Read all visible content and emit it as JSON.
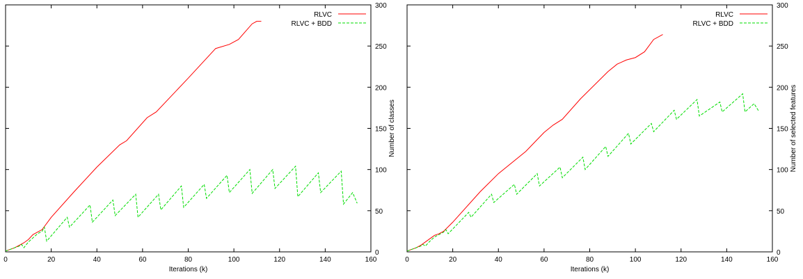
{
  "colors": {
    "rlvc": "#ff0000",
    "rlvc_bdd": "#00dd00",
    "axis": "#000000"
  },
  "chart_data": [
    {
      "type": "line",
      "title": "",
      "xlabel": "Iterations (k)",
      "ylabel": "Number of classes",
      "xlim": [
        0,
        160
      ],
      "ylim": [
        0,
        300
      ],
      "x_ticks": [
        "0",
        "20",
        "40",
        "60",
        "80",
        "100",
        "120",
        "140",
        "160"
      ],
      "y_ticks": [
        "0",
        "50",
        "100",
        "150",
        "200",
        "250",
        "300"
      ],
      "y_axis_side": "right",
      "grid": false,
      "legend_position": "top-right",
      "series": [
        {
          "name": "RLVC",
          "style": "solid",
          "color": "#ff0000",
          "points": [
            [
              0,
              1
            ],
            [
              2,
              3
            ],
            [
              4,
              5
            ],
            [
              6,
              8
            ],
            [
              8,
              11
            ],
            [
              10,
              15
            ],
            [
              12,
              21
            ],
            [
              14,
              24
            ],
            [
              16,
              27
            ],
            [
              20,
              42
            ],
            [
              30,
              73
            ],
            [
              40,
              103
            ],
            [
              50,
              130
            ],
            [
              53,
              135
            ],
            [
              62,
              163
            ],
            [
              66,
              170
            ],
            [
              80,
              211
            ],
            [
              92,
              247
            ],
            [
              98,
              252
            ],
            [
              102,
              258
            ],
            [
              108,
              277
            ],
            [
              110,
              280
            ],
            [
              112,
              280
            ]
          ]
        },
        {
          "name": "RLVC + BDD",
          "style": "dashed",
          "color": "#00dd00",
          "points": [
            [
              0,
              1
            ],
            [
              2,
              3
            ],
            [
              4,
              5
            ],
            [
              6,
              7
            ],
            [
              7,
              9
            ],
            [
              8,
              5
            ],
            [
              10,
              12
            ],
            [
              12,
              17
            ],
            [
              14,
              22
            ],
            [
              16,
              25
            ],
            [
              17,
              30
            ],
            [
              18,
              13
            ],
            [
              27,
              42
            ],
            [
              28,
              30
            ],
            [
              37,
              57
            ],
            [
              38,
              36
            ],
            [
              47,
              63
            ],
            [
              48,
              44
            ],
            [
              57,
              70
            ],
            [
              58,
              42
            ],
            [
              67,
              70
            ],
            [
              68,
              51
            ],
            [
              77,
              80
            ],
            [
              78,
              54
            ],
            [
              87,
              82
            ],
            [
              88,
              65
            ],
            [
              97,
              93
            ],
            [
              98,
              72
            ],
            [
              107,
              100
            ],
            [
              108,
              71
            ],
            [
              117,
              100
            ],
            [
              118,
              77
            ],
            [
              127,
              104
            ],
            [
              128,
              67
            ],
            [
              137,
              96
            ],
            [
              138,
              72
            ],
            [
              147,
              98
            ],
            [
              148,
              58
            ],
            [
              152,
              72
            ],
            [
              154,
              59
            ]
          ]
        }
      ]
    },
    {
      "type": "line",
      "title": "",
      "xlabel": "Iterations (k)",
      "ylabel": "Number of selected features",
      "xlim": [
        0,
        160
      ],
      "ylim": [
        0,
        300
      ],
      "x_ticks": [
        "0",
        "20",
        "40",
        "60",
        "80",
        "100",
        "120",
        "140",
        "160"
      ],
      "y_ticks": [
        "0",
        "50",
        "100",
        "150",
        "200",
        "250",
        "300"
      ],
      "y_axis_side": "right",
      "grid": false,
      "legend_position": "top-right",
      "series": [
        {
          "name": "RLVC",
          "style": "solid",
          "color": "#ff0000",
          "points": [
            [
              0,
              1
            ],
            [
              2,
              3
            ],
            [
              4,
              5
            ],
            [
              6,
              8
            ],
            [
              8,
              12
            ],
            [
              10,
              16
            ],
            [
              12,
              20
            ],
            [
              14,
              22
            ],
            [
              16,
              25
            ],
            [
              20,
              36
            ],
            [
              32,
              73
            ],
            [
              40,
              95
            ],
            [
              52,
              122
            ],
            [
              60,
              145
            ],
            [
              64,
              154
            ],
            [
              68,
              161
            ],
            [
              76,
              186
            ],
            [
              88,
              219
            ],
            [
              92,
              228
            ],
            [
              96,
              233
            ],
            [
              100,
              236
            ],
            [
              104,
              243
            ],
            [
              108,
              258
            ],
            [
              112,
              264
            ]
          ]
        },
        {
          "name": "RLVC + BDD",
          "style": "dashed",
          "color": "#00dd00",
          "points": [
            [
              0,
              1
            ],
            [
              2,
              3
            ],
            [
              4,
              5
            ],
            [
              6,
              7
            ],
            [
              7,
              9
            ],
            [
              8,
              7
            ],
            [
              10,
              13
            ],
            [
              12,
              18
            ],
            [
              14,
              21
            ],
            [
              16,
              24
            ],
            [
              17,
              27
            ],
            [
              18,
              22
            ],
            [
              27,
              48
            ],
            [
              28,
              42
            ],
            [
              37,
              70
            ],
            [
              38,
              60
            ],
            [
              47,
              82
            ],
            [
              48,
              70
            ],
            [
              57,
              95
            ],
            [
              58,
              80
            ],
            [
              67,
              103
            ],
            [
              68,
              90
            ],
            [
              77,
              115
            ],
            [
              78,
              100
            ],
            [
              87,
              128
            ],
            [
              88,
              116
            ],
            [
              97,
              144
            ],
            [
              98,
              131
            ],
            [
              107,
              156
            ],
            [
              108,
              146
            ],
            [
              117,
              172
            ],
            [
              118,
              161
            ],
            [
              127,
              185
            ],
            [
              128,
              165
            ],
            [
              137,
              182
            ],
            [
              138,
              170
            ],
            [
              147,
              192
            ],
            [
              148,
              170
            ],
            [
              152,
              180
            ],
            [
              154,
              171
            ]
          ]
        }
      ]
    }
  ]
}
